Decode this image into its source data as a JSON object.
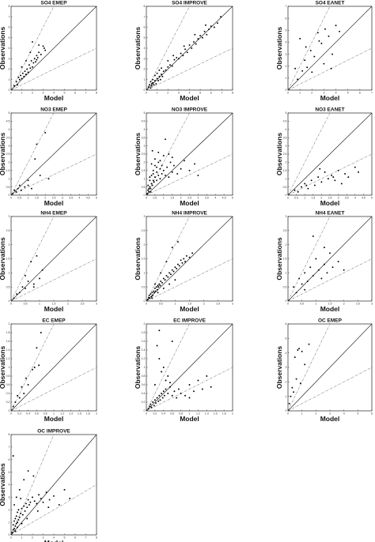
{
  "figure": {
    "axis_labels": {
      "x": "Model",
      "y": "Observations"
    }
  },
  "chart_data": [
    {
      "type": "scatter",
      "title": "SO4 EMEP",
      "xlabel": "Model",
      "ylabel": "Observations",
      "xlim": [
        0,
        8
      ],
      "ylim": [
        0,
        8
      ],
      "xticks": [
        "0",
        "1",
        "2",
        "3",
        "4",
        "5",
        "6",
        "7",
        "8"
      ],
      "yticks": [
        "0",
        "1",
        "2",
        "3",
        "4",
        "5",
        "6",
        "7",
        "8"
      ],
      "reference_lines": [
        "1:1",
        "2:1",
        "1:2"
      ],
      "x": [
        0.3,
        0.5,
        0.6,
        0.7,
        0.8,
        0.9,
        1.0,
        1.1,
        1.2,
        1.3,
        1.4,
        1.5,
        1.6,
        1.7,
        1.8,
        1.9,
        2.0,
        2.1,
        2.2,
        2.3,
        2.4,
        2.5,
        2.6,
        2.8,
        3.0,
        3.2,
        1.0,
        1.4,
        2.0,
        2.6,
        3.1,
        1.8,
        2.4
      ],
      "y": [
        0.4,
        0.8,
        0.5,
        1.2,
        1.0,
        1.4,
        1.1,
        1.6,
        1.3,
        1.8,
        1.5,
        2.0,
        1.7,
        2.4,
        2.1,
        2.8,
        2.2,
        2.6,
        3.0,
        2.7,
        3.3,
        3.1,
        3.6,
        3.4,
        4.2,
        3.8,
        2.2,
        2.8,
        4.6,
        4.3,
        4.0,
        3.6,
        2.9
      ]
    },
    {
      "type": "scatter",
      "title": "SO4 IMPROVE",
      "xlabel": "Model",
      "ylabel": "Observations",
      "xlim": [
        0,
        8
      ],
      "ylim": [
        0,
        8
      ],
      "xticks": [
        "0",
        "1",
        "2",
        "3",
        "4",
        "5",
        "6",
        "7",
        "8"
      ],
      "yticks": [
        "0",
        "1",
        "2",
        "3",
        "4",
        "5",
        "6",
        "7",
        "8"
      ],
      "reference_lines": [
        "1:1",
        "2:1",
        "1:2"
      ],
      "x": [
        0.2,
        0.3,
        0.4,
        0.5,
        0.5,
        0.6,
        0.7,
        0.8,
        0.9,
        1.0,
        1.1,
        1.2,
        1.3,
        1.4,
        1.5,
        1.6,
        1.8,
        2.0,
        2.2,
        2.4,
        2.6,
        2.8,
        3.0,
        3.2,
        3.4,
        3.6,
        3.8,
        4.0,
        4.2,
        4.4,
        4.6,
        4.8,
        5.0,
        5.2,
        5.4,
        5.6,
        5.8,
        6.0,
        6.3,
        6.6,
        0.4,
        0.6,
        0.8,
        1.0,
        1.2,
        1.4,
        2.0,
        2.5,
        3.5,
        4.5,
        5.5,
        6.9
      ],
      "y": [
        0.3,
        0.5,
        0.2,
        0.6,
        0.4,
        0.7,
        0.5,
        0.9,
        0.6,
        1.1,
        0.9,
        1.3,
        1.0,
        1.5,
        1.3,
        1.8,
        1.9,
        2.2,
        2.4,
        2.3,
        2.9,
        3.1,
        3.0,
        3.5,
        3.3,
        3.9,
        3.6,
        4.3,
        4.0,
        4.6,
        4.4,
        4.9,
        5.2,
        5.0,
        5.6,
        5.3,
        5.8,
        6.1,
        6.0,
        6.4,
        0.8,
        1.0,
        1.4,
        1.6,
        1.9,
        2.1,
        2.8,
        3.3,
        4.2,
        5.3,
        6.2,
        7.0
      ]
    },
    {
      "type": "scatter",
      "title": "SO4 EANET",
      "xlabel": "Model",
      "ylabel": "Observations",
      "xlim": [
        0,
        7
      ],
      "ylim": [
        0,
        7
      ],
      "xticks": [
        "0",
        "1",
        "2",
        "3",
        "4",
        "5",
        "6",
        "7"
      ],
      "yticks": [
        "0",
        "1",
        "2",
        "3",
        "4",
        "5",
        "6",
        "7"
      ],
      "reference_lines": [
        "1:1",
        "2:1",
        "1:2"
      ],
      "x": [
        0.6,
        0.8,
        1.0,
        1.2,
        1.4,
        1.6,
        1.9,
        2.2,
        2.5,
        2.8,
        3.1,
        3.4,
        3.7,
        4.0,
        4.3,
        2.0,
        3.0,
        3.6,
        1.5,
        2.6
      ],
      "y": [
        1.8,
        0.9,
        4.3,
        1.6,
        2.5,
        1.9,
        3.3,
        2.8,
        4.8,
        3.9,
        5.1,
        4.5,
        3.0,
        5.4,
        4.9,
        1.5,
        2.2,
        1.8,
        3.6,
        4.1
      ]
    },
    {
      "type": "scatter",
      "title": "NO3 EMEP",
      "xlabel": "Model",
      "ylabel": "Observations",
      "xlim": [
        0,
        5
      ],
      "ylim": [
        0,
        5
      ],
      "xticks": [
        "0",
        "0.5",
        "1",
        "1.5",
        "2",
        "2.5",
        "3",
        "3.5",
        "4",
        "4.5",
        "5"
      ],
      "yticks": [
        "0",
        "0.5",
        "1",
        "1.5",
        "2",
        "2.5",
        "3",
        "3.5",
        "4",
        "4.5",
        "5"
      ],
      "reference_lines": [
        "1:1",
        "2:1",
        "1:2"
      ],
      "x": [
        0.1,
        0.2,
        0.3,
        0.4,
        0.6,
        0.8,
        1.0,
        1.2,
        1.5,
        1.7,
        2.0,
        2.2,
        1.0,
        1.4,
        0.5
      ],
      "y": [
        0.1,
        0.3,
        0.2,
        0.4,
        0.3,
        0.5,
        0.9,
        0.4,
        3.1,
        1.2,
        3.8,
        1.0,
        0.6,
        2.2,
        0.6
      ]
    },
    {
      "type": "scatter",
      "title": "NO3 IMPROVE",
      "xlabel": "Model",
      "ylabel": "Observations",
      "xlim": [
        0,
        5
      ],
      "ylim": [
        0,
        5
      ],
      "xticks": [
        "0",
        "0.5",
        "1",
        "1.5",
        "2",
        "2.5",
        "3",
        "3.5",
        "4",
        "4.5",
        "5"
      ],
      "yticks": [
        "0",
        "0.5",
        "1",
        "1.5",
        "2",
        "2.5",
        "3",
        "3.5",
        "4",
        "4.5",
        "5"
      ],
      "reference_lines": [
        "1:1",
        "2:1",
        "1:2"
      ],
      "x": [
        0.05,
        0.1,
        0.1,
        0.15,
        0.2,
        0.2,
        0.25,
        0.3,
        0.3,
        0.35,
        0.4,
        0.4,
        0.45,
        0.5,
        0.5,
        0.6,
        0.6,
        0.7,
        0.7,
        0.8,
        0.8,
        0.9,
        1.0,
        1.0,
        1.1,
        1.2,
        1.3,
        1.4,
        1.5,
        1.6,
        1.8,
        2.0,
        2.2,
        2.5,
        2.8,
        3.0,
        0.2,
        0.3,
        0.4,
        0.5,
        0.6,
        0.7,
        0.8,
        0.9,
        1.1,
        1.3,
        1.5,
        0.15,
        0.25,
        0.35
      ],
      "y": [
        0.1,
        0.3,
        0.6,
        0.2,
        0.5,
        0.9,
        0.4,
        0.7,
        1.2,
        0.6,
        0.9,
        1.5,
        0.8,
        1.1,
        1.8,
        0.9,
        1.4,
        1.2,
        2.0,
        1.0,
        1.6,
        1.3,
        1.5,
        2.4,
        1.2,
        1.7,
        1.1,
        2.0,
        1.4,
        1.8,
        1.3,
        1.6,
        2.1,
        1.5,
        1.9,
        1.2,
        1.1,
        1.9,
        1.3,
        2.2,
        1.7,
        2.6,
        2.1,
        1.8,
        3.4,
        2.5,
        2.3,
        0.4,
        0.2,
        2.7
      ]
    },
    {
      "type": "scatter",
      "title": "NO3 EANET",
      "xlabel": "Model",
      "ylabel": "Observations",
      "xlim": [
        0,
        5
      ],
      "ylim": [
        0,
        5
      ],
      "xticks": [
        "0",
        "0.5",
        "1",
        "1.5",
        "2",
        "2.5",
        "3",
        "3.5",
        "4",
        "4.5",
        "5"
      ],
      "yticks": [
        "0",
        "0.5",
        "1",
        "1.5",
        "2",
        "2.5",
        "3",
        "3.5",
        "4",
        "4.5",
        "5"
      ],
      "reference_lines": [
        "1:1",
        "2:1",
        "1:2"
      ],
      "x": [
        0.4,
        0.6,
        0.8,
        1.0,
        1.2,
        1.4,
        1.6,
        1.8,
        2.0,
        2.2,
        2.4,
        2.6,
        2.8,
        3.0,
        3.2,
        3.4,
        3.6,
        4.0,
        4.2,
        1.1,
        1.9,
        2.7
      ],
      "y": [
        0.3,
        0.2,
        0.5,
        0.7,
        0.4,
        0.9,
        0.6,
        1.1,
        0.8,
        1.4,
        1.0,
        1.2,
        0.9,
        1.5,
        0.7,
        1.3,
        1.1,
        1.7,
        1.4,
        0.6,
        1.6,
        1.1
      ]
    },
    {
      "type": "scatter",
      "title": "NH4 EMEP",
      "xlabel": "Model",
      "ylabel": "Observations",
      "xlim": [
        0,
        3
      ],
      "ylim": [
        0,
        3
      ],
      "xticks": [
        "0",
        "0.5",
        "1",
        "1.5",
        "2",
        "2.5",
        "3"
      ],
      "yticks": [
        "0",
        "0.5",
        "1",
        "1.5",
        "2",
        "2.5",
        "3"
      ],
      "reference_lines": [
        "1:1",
        "2:1",
        "1:2"
      ],
      "x": [
        0.1,
        0.2,
        0.3,
        0.4,
        0.5,
        0.6,
        0.7,
        0.8,
        0.9,
        1.0,
        1.1,
        0.5,
        0.8
      ],
      "y": [
        0.1,
        0.25,
        0.3,
        0.5,
        0.45,
        0.7,
        1.4,
        0.6,
        1.6,
        0.8,
        1.1,
        0.9,
        0.5
      ]
    },
    {
      "type": "scatter",
      "title": "NH4 IMPROVE",
      "xlabel": "Model",
      "ylabel": "Observations",
      "xlim": [
        0,
        3
      ],
      "ylim": [
        0,
        3
      ],
      "xticks": [
        "0",
        "0.5",
        "1",
        "1.5",
        "2",
        "2.5",
        "3"
      ],
      "yticks": [
        "0",
        "0.5",
        "1",
        "1.5",
        "2",
        "2.5",
        "3"
      ],
      "reference_lines": [
        "1:1",
        "2:1",
        "1:2"
      ],
      "x": [
        0.05,
        0.08,
        0.1,
        0.12,
        0.15,
        0.18,
        0.2,
        0.22,
        0.25,
        0.28,
        0.3,
        0.32,
        0.35,
        0.38,
        0.4,
        0.42,
        0.45,
        0.48,
        0.5,
        0.55,
        0.6,
        0.65,
        0.7,
        0.75,
        0.8,
        0.85,
        0.9,
        0.95,
        1.0,
        1.05,
        1.1,
        1.15,
        1.2,
        1.25,
        1.3,
        1.35,
        1.4,
        1.5,
        1.6,
        0.3,
        0.5,
        0.7,
        0.9,
        1.1,
        0.2,
        0.4,
        0.6,
        0.8,
        1.0
      ],
      "y": [
        0.05,
        0.12,
        0.2,
        0.1,
        0.25,
        0.15,
        0.3,
        0.2,
        0.35,
        0.3,
        0.45,
        0.35,
        0.5,
        0.4,
        0.55,
        0.5,
        0.6,
        0.55,
        0.7,
        0.65,
        0.8,
        0.75,
        0.9,
        0.85,
        1.0,
        0.95,
        1.1,
        1.05,
        1.2,
        1.15,
        1.3,
        1.25,
        1.45,
        1.35,
        1.5,
        1.4,
        1.6,
        1.55,
        1.7,
        0.6,
        1.0,
        1.4,
        1.9,
        2.1,
        0.1,
        0.3,
        0.45,
        0.6,
        0.75
      ]
    },
    {
      "type": "scatter",
      "title": "NH4 EANET",
      "xlabel": "Model",
      "ylabel": "Observations",
      "xlim": [
        0,
        3
      ],
      "ylim": [
        0,
        3
      ],
      "xticks": [
        "0",
        "0.5",
        "1",
        "1.5",
        "2",
        "2.5",
        "3"
      ],
      "yticks": [
        "0",
        "0.5",
        "1",
        "1.5",
        "2",
        "2.5",
        "3"
      ],
      "reference_lines": [
        "1:1",
        "2:1",
        "1:2"
      ],
      "x": [
        0.2,
        0.3,
        0.4,
        0.5,
        0.6,
        0.7,
        0.8,
        0.9,
        1.0,
        1.1,
        1.2,
        1.3,
        1.4,
        1.5,
        1.6,
        1.8,
        2.0,
        0.9,
        1.3,
        0.6
      ],
      "y": [
        0.5,
        0.3,
        0.8,
        0.6,
        1.0,
        0.7,
        1.2,
        0.9,
        1.5,
        1.1,
        0.8,
        1.3,
        1.0,
        1.7,
        1.2,
        1.4,
        1.1,
        2.3,
        1.9,
        0.4
      ]
    },
    {
      "type": "scatter",
      "title": "EC EMEP",
      "xlabel": "Model",
      "ylabel": "Observations",
      "xlim": [
        0,
        2
      ],
      "ylim": [
        0,
        2
      ],
      "xticks": [
        "0",
        "0.2",
        "0.4",
        "0.6",
        "0.8",
        "1",
        "1.2",
        "1.4",
        "1.6",
        "1.8",
        "2"
      ],
      "yticks": [
        "0",
        "0.2",
        "0.4",
        "0.6",
        "0.8",
        "1",
        "1.2",
        "1.4",
        "1.6",
        "1.8",
        "2"
      ],
      "reference_lines": [
        "1:1",
        "2:1",
        "1:2"
      ],
      "x": [
        0.05,
        0.1,
        0.15,
        0.2,
        0.25,
        0.3,
        0.35,
        0.4,
        0.5,
        0.55,
        0.6,
        0.65,
        0.7
      ],
      "y": [
        0.1,
        0.2,
        0.35,
        0.3,
        0.55,
        0.4,
        0.75,
        0.6,
        0.95,
        1.0,
        1.45,
        1.05,
        1.8
      ]
    },
    {
      "type": "scatter",
      "title": "EC IMPROVE",
      "xlabel": "Model",
      "ylabel": "Observations",
      "xlim": [
        0,
        2
      ],
      "ylim": [
        0,
        2
      ],
      "xticks": [
        "0",
        "0.2",
        "0.4",
        "0.6",
        "0.8",
        "1",
        "1.2",
        "1.4",
        "1.6",
        "1.8",
        "2"
      ],
      "yticks": [
        "0",
        "0.2",
        "0.4",
        "0.6",
        "0.8",
        "1",
        "1.2",
        "1.4",
        "1.6",
        "1.8",
        "2"
      ],
      "reference_lines": [
        "1:1",
        "2:1",
        "1:2"
      ],
      "x": [
        0.05,
        0.08,
        0.1,
        0.12,
        0.15,
        0.18,
        0.2,
        0.22,
        0.25,
        0.28,
        0.3,
        0.32,
        0.35,
        0.38,
        0.4,
        0.42,
        0.45,
        0.5,
        0.55,
        0.6,
        0.65,
        0.7,
        0.75,
        0.8,
        0.9,
        1.0,
        1.1,
        1.2,
        1.3,
        1.4,
        1.5,
        0.3,
        0.4,
        0.5,
        0.6,
        0.2,
        0.35,
        0.45,
        0.55,
        1.0,
        0.3,
        0.25
      ],
      "y": [
        0.05,
        0.1,
        0.15,
        0.08,
        0.2,
        0.12,
        0.25,
        0.18,
        0.3,
        0.22,
        0.35,
        0.25,
        0.4,
        0.3,
        0.45,
        0.35,
        0.5,
        0.4,
        0.55,
        0.35,
        0.45,
        0.3,
        0.5,
        0.4,
        0.35,
        0.6,
        0.45,
        0.7,
        0.5,
        0.8,
        0.55,
        1.2,
        1.0,
        0.8,
        1.6,
        0.6,
        0.9,
        0.7,
        0.65,
        0.3,
        1.85,
        1.5
      ]
    },
    {
      "type": "scatter",
      "title": "OC EMEP",
      "xlabel": "Model",
      "ylabel": "Observations",
      "xlim": [
        0,
        6
      ],
      "ylim": [
        0,
        6
      ],
      "xticks": [
        "0",
        "1",
        "2",
        "3",
        "4",
        "5",
        "6"
      ],
      "yticks": [
        "0",
        "1",
        "2",
        "3",
        "4",
        "5",
        "6"
      ],
      "reference_lines": [
        "1:1",
        "2:1",
        "1:2"
      ],
      "x": [
        0.1,
        0.2,
        0.3,
        0.4,
        0.5,
        0.6,
        0.8,
        1.0,
        1.2,
        1.5,
        0.7,
        0.9
      ],
      "y": [
        0.5,
        1.0,
        1.6,
        1.3,
        3.7,
        2.2,
        4.3,
        4.1,
        3.2,
        4.6,
        4.2,
        1.9
      ]
    },
    {
      "type": "scatter",
      "title": "OC IMPROVE",
      "xlabel": "Model",
      "ylabel": "Observations",
      "xlim": [
        0,
        8
      ],
      "ylim": [
        0,
        8
      ],
      "xticks": [
        "0",
        "1",
        "2",
        "3",
        "4",
        "5",
        "6",
        "7",
        "8"
      ],
      "yticks": [
        "0",
        "1",
        "2",
        "3",
        "4",
        "5",
        "6",
        "7",
        "8"
      ],
      "reference_lines": [
        "1:1",
        "2:1",
        "1:2"
      ],
      "x": [
        0.1,
        0.2,
        0.2,
        0.3,
        0.3,
        0.4,
        0.4,
        0.5,
        0.5,
        0.6,
        0.6,
        0.7,
        0.7,
        0.8,
        0.9,
        1.0,
        1.1,
        1.2,
        1.3,
        1.4,
        1.5,
        1.6,
        1.7,
        1.8,
        2.0,
        2.2,
        2.4,
        2.6,
        2.8,
        3.0,
        3.3,
        3.6,
        4.0,
        4.5,
        5.0,
        5.5,
        0.3,
        0.5,
        0.8,
        1.2,
        1.6,
        2.1,
        0.4,
        0.6,
        1.0,
        1.5,
        2.5,
        3.5,
        0.2,
        0.9
      ],
      "y": [
        0.2,
        0.4,
        0.8,
        0.5,
        1.1,
        0.7,
        1.3,
        0.9,
        1.5,
        1.0,
        1.8,
        1.2,
        2.0,
        1.4,
        1.7,
        2.1,
        1.6,
        2.3,
        1.9,
        2.5,
        2.2,
        2.8,
        2.4,
        2.6,
        3.0,
        2.7,
        2.5,
        3.2,
        2.9,
        2.6,
        3.4,
        2.8,
        3.1,
        2.4,
        3.6,
        2.9,
        2.4,
        3.0,
        3.6,
        4.4,
        5.1,
        4.7,
        0.3,
        0.6,
        0.9,
        1.3,
        1.9,
        2.2,
        6.3,
        2.9
      ]
    }
  ]
}
